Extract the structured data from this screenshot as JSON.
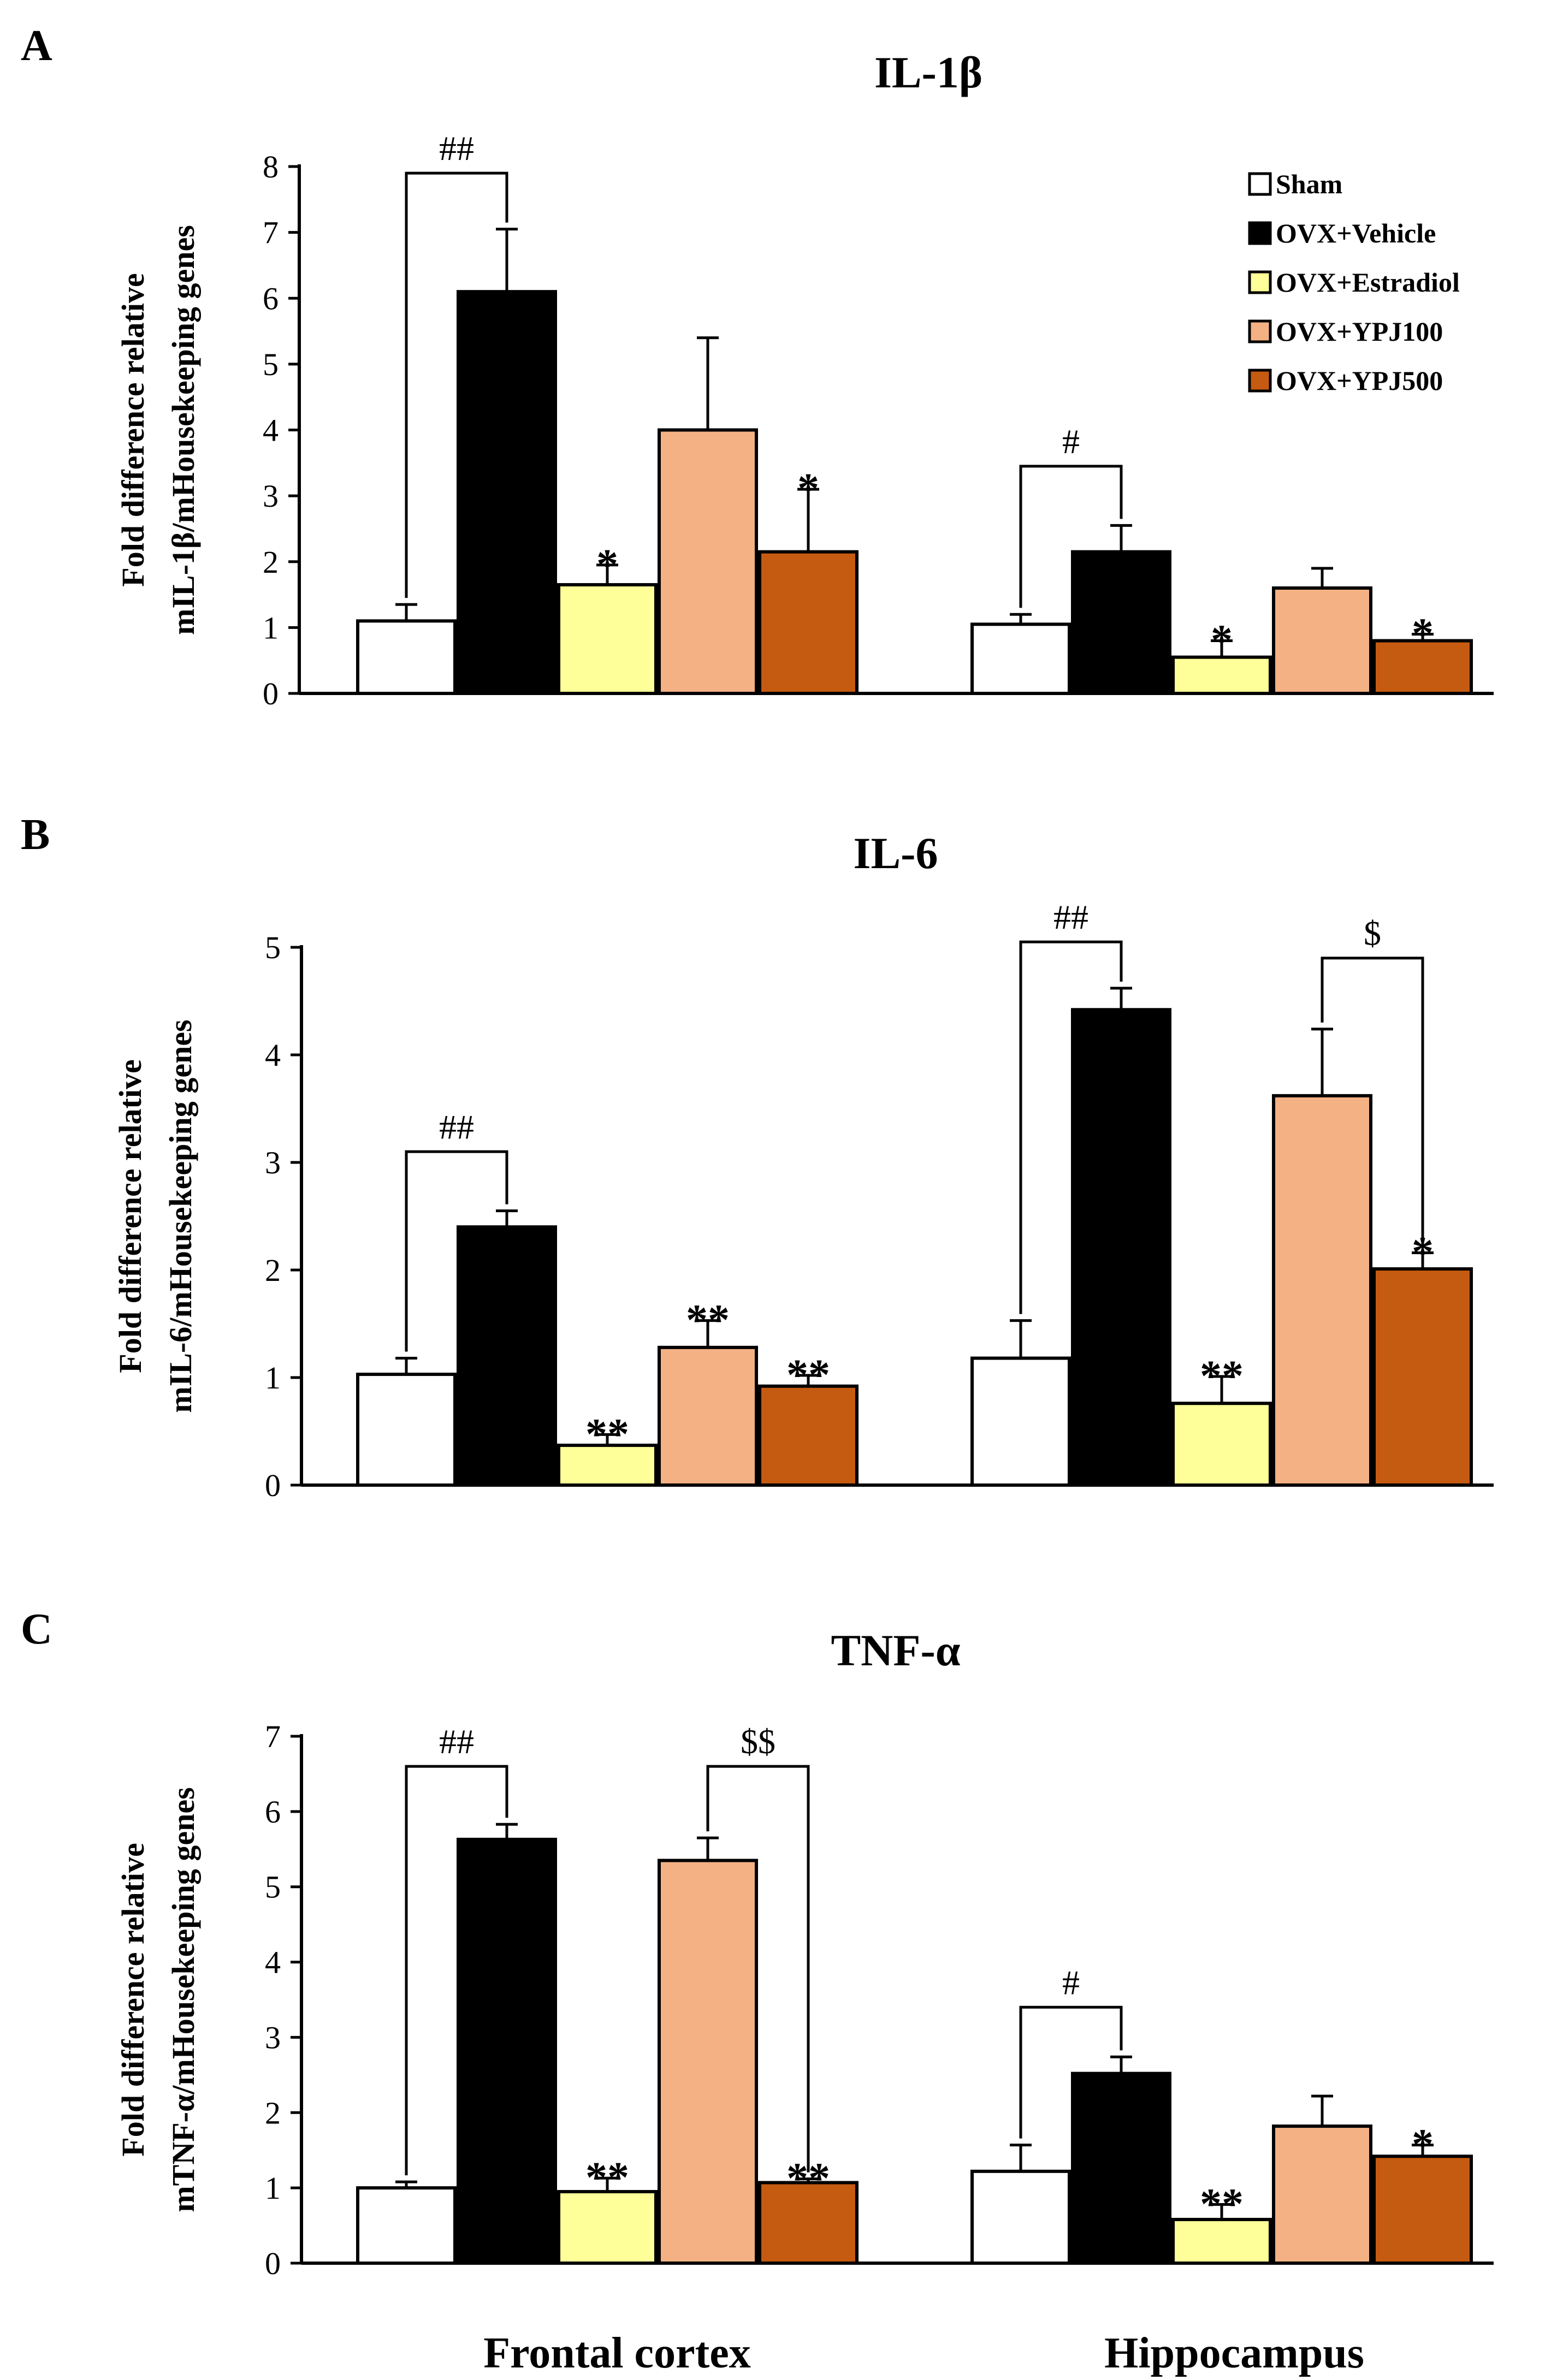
{
  "legend": {
    "items": [
      {
        "label": "Sham",
        "color": "#ffffff"
      },
      {
        "label": "OVX+Vehicle",
        "color": "#000000"
      },
      {
        "label": "OVX+Estradiol",
        "color": "#ffff99"
      },
      {
        "label": "OVX+YPJ100",
        "color": "#f4b183"
      },
      {
        "label": "OVX+YPJ500",
        "color": "#c55a11"
      }
    ]
  },
  "x_labels": [
    "Frontal cortex",
    "Hippocampus"
  ],
  "chart_data": [
    {
      "type": "bar",
      "panel": "A",
      "title": "IL-1β",
      "ylabel": [
        "Fold difference relative",
        "mIL-1β/mHousekeeping genes"
      ],
      "ylim": [
        0,
        8
      ],
      "yticks": [
        0,
        1,
        2,
        3,
        4,
        5,
        6,
        7,
        8
      ],
      "categories": [
        "Frontal cortex",
        "Hippocampus"
      ],
      "series": [
        {
          "name": "Sham",
          "values": [
            1.1,
            1.05
          ],
          "errors": [
            0.25,
            0.15
          ]
        },
        {
          "name": "OVX+Vehicle",
          "values": [
            6.1,
            2.15
          ],
          "errors": [
            0.95,
            0.4
          ]
        },
        {
          "name": "OVX+Estradiol",
          "values": [
            1.65,
            0.55
          ],
          "errors": [
            0.3,
            0.25
          ]
        },
        {
          "name": "OVX+YPJ100",
          "values": [
            4.0,
            1.6
          ],
          "errors": [
            1.4,
            0.3
          ]
        },
        {
          "name": "OVX+YPJ500",
          "values": [
            2.15,
            0.8
          ],
          "errors": [
            0.95,
            0.1
          ]
        }
      ],
      "stars": [
        {
          "category": 0,
          "series": 2,
          "text": "*"
        },
        {
          "category": 0,
          "series": 4,
          "text": "*"
        },
        {
          "category": 1,
          "series": 2,
          "text": "*"
        },
        {
          "category": 1,
          "series": 4,
          "text": "*"
        }
      ],
      "brackets": [
        {
          "category": 0,
          "from": 0,
          "to": 1,
          "level": 7.9,
          "text": "##"
        },
        {
          "category": 1,
          "from": 0,
          "to": 1,
          "level": 3.45,
          "text": "#"
        }
      ]
    },
    {
      "type": "bar",
      "panel": "B",
      "title": "IL-6",
      "ylabel": [
        "Fold difference relative",
        "mIL-6/mHousekeeping genes"
      ],
      "ylim": [
        0,
        5
      ],
      "yticks": [
        0,
        1,
        2,
        3,
        4,
        5
      ],
      "categories": [
        "Frontal cortex",
        "Hippocampus"
      ],
      "series": [
        {
          "name": "Sham",
          "values": [
            1.03,
            1.18
          ],
          "errors": [
            0.15,
            0.35
          ]
        },
        {
          "name": "OVX+Vehicle",
          "values": [
            2.4,
            4.42
          ],
          "errors": [
            0.15,
            0.2
          ]
        },
        {
          "name": "OVX+Estradiol",
          "values": [
            0.37,
            0.76
          ],
          "errors": [
            0.1,
            0.25
          ]
        },
        {
          "name": "OVX+YPJ100",
          "values": [
            1.28,
            3.62
          ],
          "errors": [
            0.25,
            0.62
          ]
        },
        {
          "name": "OVX+YPJ500",
          "values": [
            0.92,
            2.01
          ],
          "errors": [
            0.1,
            0.15
          ]
        }
      ],
      "stars": [
        {
          "category": 0,
          "series": 2,
          "text": "**"
        },
        {
          "category": 0,
          "series": 3,
          "text": "**"
        },
        {
          "category": 0,
          "series": 4,
          "text": "**"
        },
        {
          "category": 1,
          "series": 2,
          "text": "**"
        },
        {
          "category": 1,
          "series": 4,
          "text": "*"
        }
      ],
      "brackets": [
        {
          "category": 0,
          "from": 0,
          "to": 1,
          "level": 3.1,
          "text": "##"
        },
        {
          "category": 1,
          "from": 0,
          "to": 1,
          "level": 5.05,
          "text": "##"
        },
        {
          "category": 1,
          "from": 3,
          "to": 4,
          "level": 4.9,
          "text": "$"
        }
      ]
    },
    {
      "type": "bar",
      "panel": "C",
      "title": "TNF-α",
      "ylabel": [
        "Fold difference relative",
        "mTNF-α/mHousekeeping genes"
      ],
      "ylim": [
        0,
        7
      ],
      "yticks": [
        0,
        1,
        2,
        3,
        4,
        5,
        6,
        7
      ],
      "categories": [
        "Frontal cortex",
        "Hippocampus"
      ],
      "series": [
        {
          "name": "Sham",
          "values": [
            1.0,
            1.22
          ],
          "errors": [
            0.08,
            0.35
          ]
        },
        {
          "name": "OVX+Vehicle",
          "values": [
            5.63,
            2.52
          ],
          "errors": [
            0.2,
            0.22
          ]
        },
        {
          "name": "OVX+Estradiol",
          "values": [
            0.95,
            0.58
          ],
          "errors": [
            0.18,
            0.2
          ]
        },
        {
          "name": "OVX+YPJ100",
          "values": [
            5.35,
            1.82
          ],
          "errors": [
            0.3,
            0.4
          ]
        },
        {
          "name": "OVX+YPJ500",
          "values": [
            1.07,
            1.42
          ],
          "errors": [
            0.05,
            0.15
          ]
        }
      ],
      "stars": [
        {
          "category": 0,
          "series": 2,
          "text": "**"
        },
        {
          "category": 0,
          "series": 4,
          "text": "**"
        },
        {
          "category": 1,
          "series": 2,
          "text": "**"
        },
        {
          "category": 1,
          "series": 4,
          "text": "*"
        }
      ],
      "brackets": [
        {
          "category": 0,
          "from": 0,
          "to": 1,
          "level": 6.6,
          "text": "##"
        },
        {
          "category": 0,
          "from": 3,
          "to": 4,
          "level": 6.6,
          "text": "$$"
        },
        {
          "category": 1,
          "from": 0,
          "to": 1,
          "level": 3.4,
          "text": "#"
        }
      ]
    }
  ]
}
